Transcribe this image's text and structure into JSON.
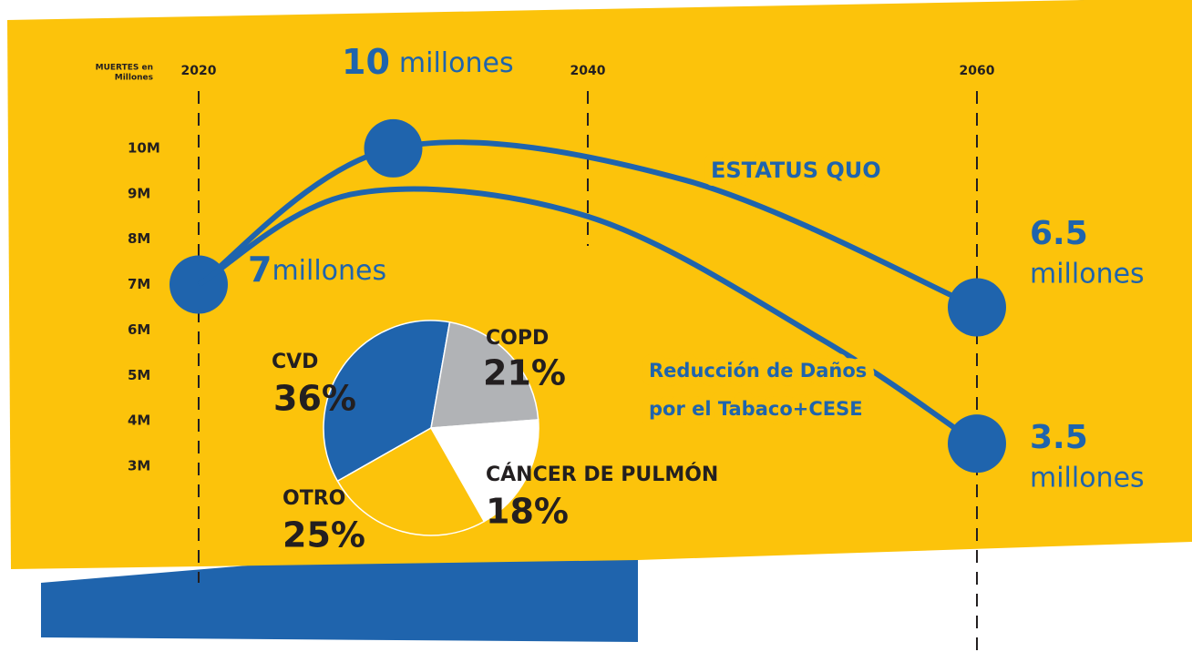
{
  "chart_data": [
    {
      "type": "line",
      "y_label": [
        "MUERTES en",
        "Millones"
      ],
      "x": [
        2020,
        2030,
        2045,
        2060
      ],
      "xlim": [
        2020,
        2060
      ],
      "xticks": [
        2020,
        2040,
        2060
      ],
      "ylim": [
        2,
        11
      ],
      "yticks": [
        {
          "value": 10,
          "label": "10M"
        },
        {
          "value": 9,
          "label": "9M"
        },
        {
          "value": 8,
          "label": "8M"
        },
        {
          "value": 7,
          "label": "7M"
        },
        {
          "value": 6,
          "label": "6M"
        },
        {
          "value": 5,
          "label": "5M"
        },
        {
          "value": 4,
          "label": "4M"
        },
        {
          "value": 3,
          "label": "3M"
        }
      ],
      "series": [
        {
          "name": "ESTATUS QUO",
          "color": "#1f64ad",
          "x": [
            2020,
            2030,
            2045,
            2060
          ],
          "values": [
            7,
            10,
            9.3,
            6.5
          ]
        },
        {
          "name": [
            "Reducción de Daños",
            "por el Tabaco+CESE"
          ],
          "color": "#1f64ad",
          "x": [
            2020,
            2028,
            2040,
            2052,
            2060
          ],
          "values": [
            7,
            9,
            8.5,
            5.8,
            3.5
          ]
        }
      ],
      "annotations": [
        {
          "number": "10",
          "unit": "millones"
        },
        {
          "number": "7",
          "unit": "millones"
        },
        {
          "number": "6.5",
          "unit": "millones"
        },
        {
          "number": "3.5",
          "unit": "millones"
        }
      ]
    },
    {
      "type": "pie",
      "categories": [
        "CVD",
        "COPD",
        "CÁNCER DE PULMÓN",
        "OTRO"
      ],
      "values": [
        36,
        21,
        18,
        25
      ],
      "value_labels": [
        "36%",
        "21%",
        "18%",
        "25%"
      ],
      "colors": [
        "#1f64ad",
        "#b1b3b6",
        "#ffffff",
        "#fcc30b"
      ]
    }
  ]
}
